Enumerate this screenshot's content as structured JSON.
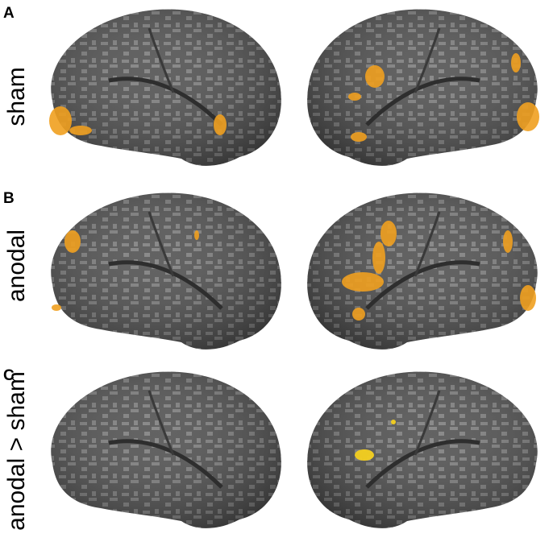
{
  "panels": [
    {
      "letter": "A",
      "label": "sham"
    },
    {
      "letter": "B",
      "label": "anodal"
    },
    {
      "letter": "C",
      "label": "anodal > sham"
    }
  ]
}
